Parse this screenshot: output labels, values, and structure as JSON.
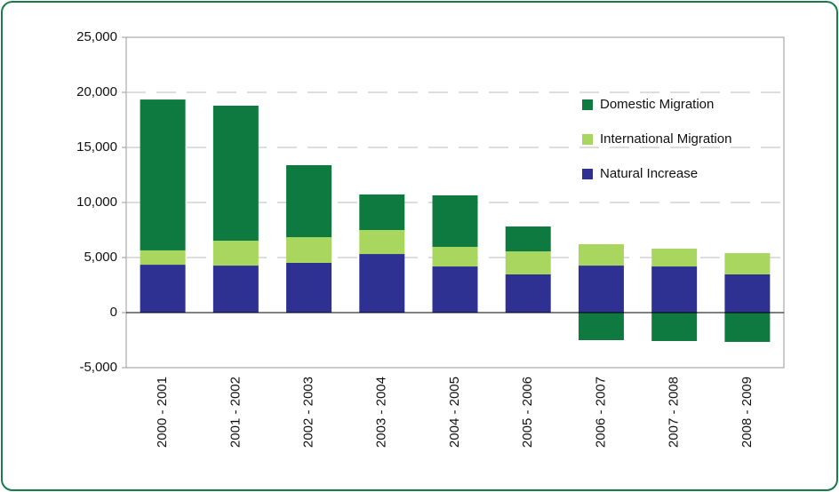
{
  "chart_data": {
    "type": "stacked_bar",
    "categories": [
      "2000 - 2001",
      "2001 - 2002",
      "2002 - 2003",
      "2003 - 2004",
      "2004 - 2005",
      "2005 - 2006",
      "2006 - 2007",
      "2007 - 2008",
      "2008 - 2009"
    ],
    "series": [
      {
        "name": "Natural Increase",
        "color": "#2e3192",
        "values": [
          4350,
          4270,
          4520,
          5320,
          4190,
          3470,
          4270,
          4190,
          3470
        ]
      },
      {
        "name": "International Migration",
        "color": "#a9d65e",
        "values": [
          1300,
          2260,
          2330,
          2180,
          1780,
          2090,
          1940,
          1620,
          1930
        ]
      },
      {
        "name": "Domestic Migration",
        "color": "#0f7a3f",
        "values": [
          13700,
          12260,
          6540,
          3230,
          4680,
          2260,
          -2500,
          -2580,
          -2660
        ]
      }
    ],
    "ylim": [
      -5000,
      25000
    ],
    "yticks": [
      {
        "value": -5000,
        "label": "-5,000"
      },
      0,
      {
        "value": 5000,
        "label": "5,000"
      },
      {
        "value": 10000,
        "label": "10,000"
      },
      {
        "value": 15000,
        "label": "15,000"
      },
      {
        "value": 20000,
        "label": "20,000"
      },
      {
        "value": 25000,
        "label": "25,000"
      }
    ],
    "grid": true,
    "legend": "upper right"
  }
}
